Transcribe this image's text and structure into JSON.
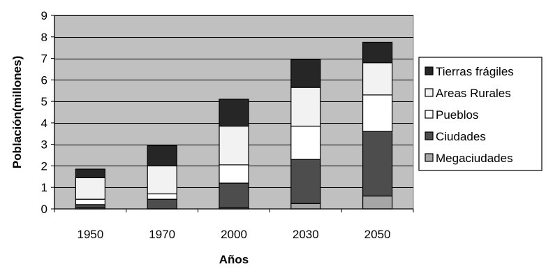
{
  "chart_data": {
    "type": "bar",
    "stacked": true,
    "title": "",
    "xlabel": "Años",
    "ylabel": "Población(millones)",
    "ylim": [
      0,
      9
    ],
    "yticks": [
      0,
      1,
      2,
      3,
      4,
      5,
      6,
      7,
      8,
      9
    ],
    "grid": true,
    "legend_position": "right",
    "categories": [
      "1950",
      "1970",
      "2000",
      "2030",
      "2050"
    ],
    "series": [
      {
        "name": "Megaciudades",
        "color": "#a6a6a6",
        "values": [
          0.05,
          0.0,
          0.05,
          0.25,
          0.6
        ]
      },
      {
        "name": "Ciudades",
        "color": "#4d4d4d",
        "values": [
          0.15,
          0.45,
          1.15,
          2.05,
          3.0
        ]
      },
      {
        "name": "Pueblos",
        "color": "#ffffff",
        "values": [
          0.25,
          0.25,
          0.85,
          1.55,
          1.7
        ]
      },
      {
        "name": "Areas Rurales",
        "color": "#f2f2f2",
        "values": [
          1.0,
          1.3,
          1.8,
          1.8,
          1.5
        ]
      },
      {
        "name": "Tierras frágiles",
        "color": "#262626",
        "values": [
          0.4,
          0.95,
          1.25,
          1.3,
          0.95
        ]
      }
    ],
    "legend_order": [
      "Tierras frágiles",
      "Areas Rurales",
      "Pueblos",
      "Ciudades",
      "Megaciudades"
    ],
    "plot_background": "#c0c0c0"
  }
}
